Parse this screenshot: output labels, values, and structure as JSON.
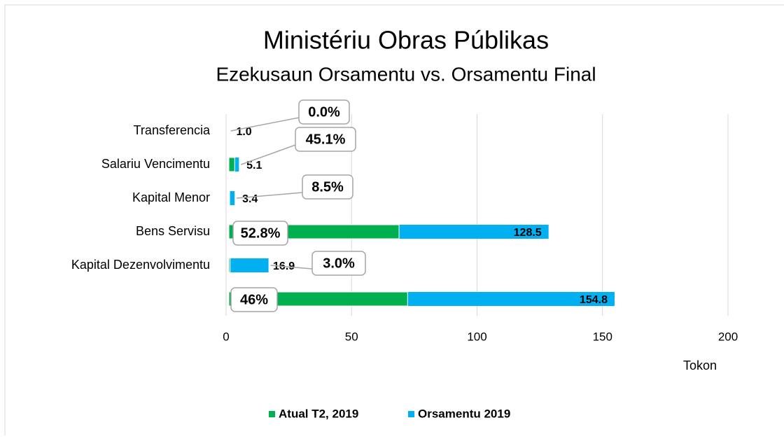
{
  "chart_data": {
    "type": "bar",
    "orientation": "horizontal",
    "title": "Ministériu Obras Públikas",
    "subtitle": "Ezekusaun Orsamentu vs. Orsamentu Final",
    "x_label": "Tokon",
    "categories": [
      "Transferencia",
      "Salariu  Vencimentu",
      "Kapital Menor",
      "Bens  Servisu",
      "Kapital Dezenvolvimentu",
      null
    ],
    "series": [
      {
        "name": "Atual T2, 2019",
        "color": "#00b050",
        "values": [
          0.0,
          2.3,
          0.3,
          67.8,
          0.5,
          71.2
        ]
      },
      {
        "name": "Orsamentu 2019",
        "color": "#00b0f0",
        "values": [
          1.0,
          5.1,
          3.4,
          128.5,
          16.9,
          154.8
        ],
        "value_labels": [
          "1.0",
          "5.1",
          "3.4",
          "128.5",
          "16.9",
          "154.8"
        ]
      }
    ],
    "annotations": [
      "0.0%",
      "45.1%",
      "8.5%",
      "52.8%",
      "3.0%",
      "46%"
    ],
    "xlim": [
      0,
      200
    ],
    "xticks": [
      0,
      50,
      100,
      150,
      200
    ],
    "grid": true,
    "legend": "bottom"
  }
}
